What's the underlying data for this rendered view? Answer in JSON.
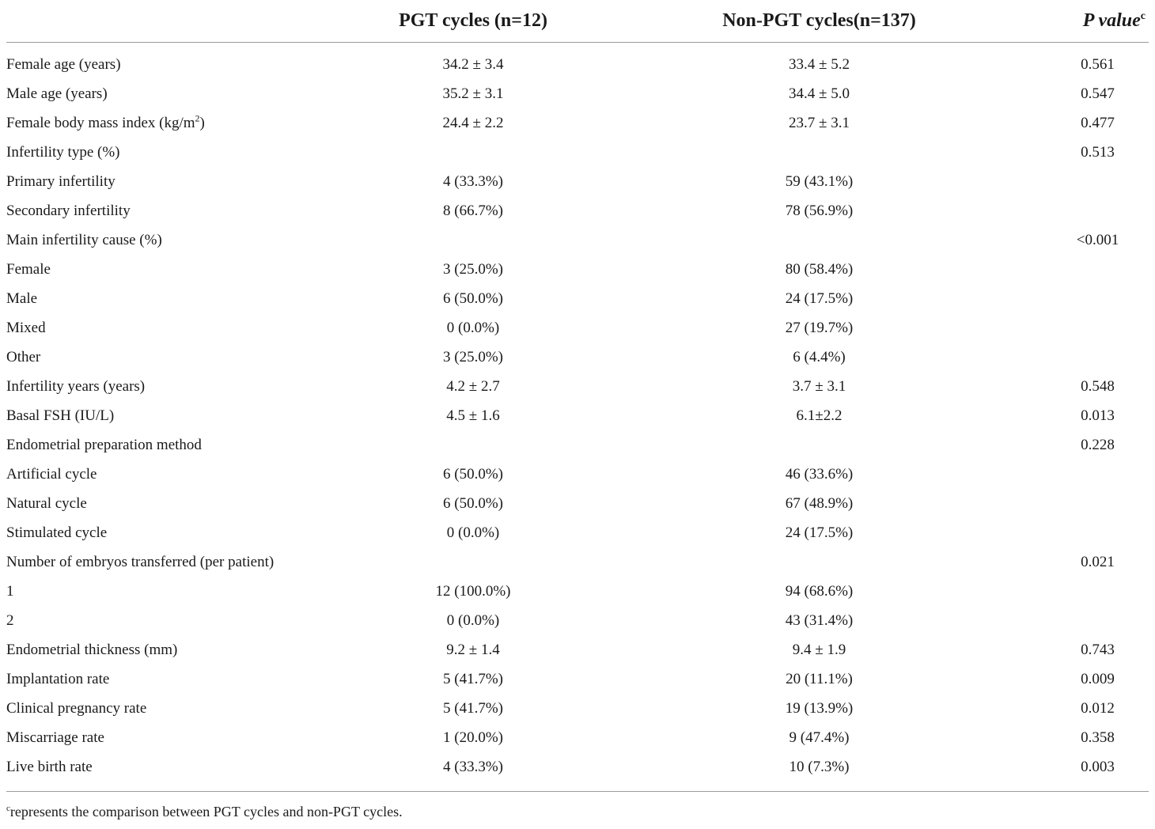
{
  "header": {
    "pgt_label": "PGT cycles (n=12)",
    "non_pgt_label": "Non-PGT cycles(n=137)",
    "p_value_label": "P value",
    "p_value_sup": "c"
  },
  "rows": [
    {
      "label": "Female age (years)",
      "pgt": "34.2 ± 3.4",
      "non_pgt": "33.4 ± 5.2",
      "p": "0.561"
    },
    {
      "label": "Male age (years)",
      "pgt": "35.2 ± 3.1",
      "non_pgt": "34.4 ± 5.0",
      "p": "0.547"
    },
    {
      "label": "Female body mass index (kg/m",
      "label_sup": "2",
      "label_tail": ")",
      "pgt": "24.4 ± 2.2",
      "non_pgt": "23.7 ± 3.1",
      "p": "0.477"
    },
    {
      "label": "Infertility type (%)",
      "pgt": "",
      "non_pgt": "",
      "p": "0.513"
    },
    {
      "label": "Primary infertility",
      "pgt": "4 (33.3%)",
      "non_pgt": "59 (43.1%)",
      "p": ""
    },
    {
      "label": "Secondary infertility",
      "pgt": "8 (66.7%)",
      "non_pgt": "78 (56.9%)",
      "p": ""
    },
    {
      "label": "Main infertility cause (%)",
      "pgt": "",
      "non_pgt": "",
      "p": "<0.001"
    },
    {
      "label": "Female",
      "pgt": "3 (25.0%)",
      "non_pgt": "80 (58.4%)",
      "p": ""
    },
    {
      "label": "Male",
      "pgt": "6 (50.0%)",
      "non_pgt": "24 (17.5%)",
      "p": ""
    },
    {
      "label": "Mixed",
      "pgt": "0 (0.0%)",
      "non_pgt": "27 (19.7%)",
      "p": ""
    },
    {
      "label": "Other",
      "pgt": "3 (25.0%)",
      "non_pgt": "6 (4.4%)",
      "p": ""
    },
    {
      "label": "Infertility years (years)",
      "pgt": "4.2 ± 2.7",
      "non_pgt": "3.7 ± 3.1",
      "p": "0.548"
    },
    {
      "label": "Basal FSH (IU/L)",
      "pgt": "4.5 ± 1.6",
      "non_pgt": "6.1±2.2",
      "p": "0.013"
    },
    {
      "label": "Endometrial preparation method",
      "pgt": "",
      "non_pgt": "",
      "p": "0.228"
    },
    {
      "label": "Artificial cycle",
      "pgt": "6 (50.0%)",
      "non_pgt": "46 (33.6%)",
      "p": ""
    },
    {
      "label": "Natural cycle",
      "pgt": "6 (50.0%)",
      "non_pgt": "67 (48.9%)",
      "p": ""
    },
    {
      "label": "Stimulated cycle",
      "pgt": "0 (0.0%)",
      "non_pgt": "24 (17.5%)",
      "p": ""
    },
    {
      "label": "Number of embryos transferred (per patient)",
      "pgt": "",
      "non_pgt": "",
      "p": "0.021"
    },
    {
      "label": "1",
      "pgt": "12 (100.0%)",
      "non_pgt": "94 (68.6%)",
      "p": ""
    },
    {
      "label": "2",
      "pgt": "0 (0.0%)",
      "non_pgt": "43 (31.4%)",
      "p": ""
    },
    {
      "label": "Endometrial thickness (mm)",
      "pgt": "9.2 ± 1.4",
      "non_pgt": "9.4 ± 1.9",
      "p": "0.743"
    },
    {
      "label": "Implantation rate",
      "pgt": "5 (41.7%)",
      "non_pgt": "20 (11.1%)",
      "p": "0.009"
    },
    {
      "label": "Clinical pregnancy rate",
      "pgt": "5 (41.7%)",
      "non_pgt": "19 (13.9%)",
      "p": "0.012"
    },
    {
      "label": "Miscarriage rate",
      "pgt": "1 (20.0%)",
      "non_pgt": "9 (47.4%)",
      "p": "0.358"
    },
    {
      "label": "Live birth rate",
      "pgt": "4 (33.3%)",
      "non_pgt": "10 (7.3%)",
      "p": "0.003"
    }
  ],
  "footnote": {
    "sup": "c",
    "text": "represents the comparison between PGT cycles and non-PGT cycles."
  }
}
